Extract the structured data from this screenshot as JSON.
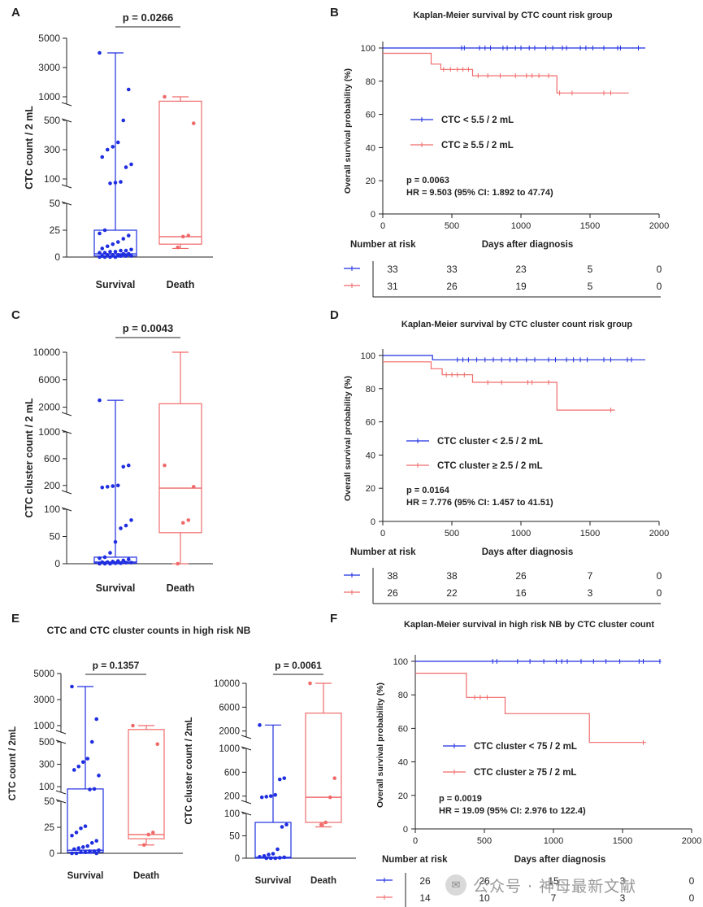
{
  "colors": {
    "survival": "#1f2ee0",
    "death": "#f06a6a",
    "axis": "#222222"
  },
  "chart_data": [
    {
      "panel": "A",
      "type": "box",
      "ylabel": "CTC count / 2 mL",
      "categories": [
        "Survival",
        "Death"
      ],
      "pvalue": "p = 0.0266",
      "yticks": [
        "0",
        "25",
        "50",
        "100",
        "300",
        "500",
        "1000",
        "3000",
        "5000"
      ],
      "series": [
        {
          "name": "Survival",
          "color": "#1f2ee0",
          "box": [
            1,
            3,
            25
          ],
          "whisker": [
            0,
            4000
          ],
          "points": [
            4000,
            1500,
            500,
            350,
            320,
            300,
            250,
            200,
            180,
            80,
            75,
            70,
            25,
            22,
            20,
            17,
            14,
            12,
            10,
            8,
            7,
            6,
            6,
            5,
            5,
            4,
            4,
            3,
            3,
            2,
            2,
            2,
            1,
            1,
            1,
            1,
            0,
            0,
            0,
            0
          ]
        },
        {
          "name": "Death",
          "color": "#f06a6a",
          "box": [
            12,
            19,
            700
          ],
          "whisker": [
            8,
            1000
          ],
          "points": [
            1000,
            480,
            20,
            19,
            9
          ]
        }
      ]
    },
    {
      "panel": "B",
      "type": "line",
      "title": "Kaplan-Meier survival by CTC count risk group",
      "xlabel": "Days after diagnosis",
      "ylabel": "Overall survival probability (%)",
      "xlim": [
        0,
        2000
      ],
      "ylim": [
        0,
        100
      ],
      "xticks": [
        "0",
        "500",
        "1000",
        "1500",
        "2000"
      ],
      "yticks": [
        "0",
        "20",
        "40",
        "60",
        "80",
        "100"
      ],
      "series": [
        {
          "name": "CTC < 5.5 / 2 mL",
          "color": "#1f2ee0",
          "steps": [
            [
              0,
              100
            ],
            [
              1900,
              100
            ]
          ],
          "censors": [
            570,
            590,
            700,
            740,
            780,
            870,
            900,
            960,
            1000,
            1060,
            1100,
            1180,
            1230,
            1300,
            1330,
            1430,
            1470,
            1520,
            1600,
            1700,
            1720,
            1850
          ]
        },
        {
          "name": "CTC ≥ 5.5 / 2 mL",
          "color": "#f06a6a",
          "steps": [
            [
              0,
              96.8
            ],
            [
              350,
              96.8
            ],
            [
              350,
              90.3
            ],
            [
              420,
              90.3
            ],
            [
              420,
              87.1
            ],
            [
              650,
              87.1
            ],
            [
              650,
              83.3
            ],
            [
              1260,
              83.3
            ],
            [
              1260,
              72.9
            ],
            [
              1780,
              72.9
            ]
          ],
          "censors": [
            440,
            490,
            540,
            580,
            620,
            690,
            760,
            850,
            960,
            1040,
            1080,
            1130,
            1200,
            1280,
            1370,
            1600,
            1650
          ]
        }
      ],
      "pvalue": "p = 0.0063",
      "hr": "HR = 9.503 (95% CI: 1.892 to 47.74)",
      "risk": {
        "header": "Number at risk",
        "times": [
          0,
          500,
          1000,
          1500,
          2000
        ],
        "rows": [
          {
            "color": "#1f2ee0",
            "counts": [
              "33",
              "33",
              "23",
              "5",
              "0"
            ]
          },
          {
            "color": "#f06a6a",
            "counts": [
              "31",
              "26",
              "19",
              "5",
              "0"
            ]
          }
        ]
      }
    },
    {
      "panel": "C",
      "type": "box",
      "ylabel": "CTC cluster count / 2 mL",
      "categories": [
        "Survival",
        "Death"
      ],
      "pvalue": "p = 0.0043",
      "yticks": [
        "0",
        "50",
        "100",
        "200",
        "600",
        "1000",
        "2000",
        "6000",
        "10000"
      ],
      "series": [
        {
          "name": "Survival",
          "color": "#1f2ee0",
          "box": [
            1,
            3,
            12
          ],
          "whisker": [
            0,
            3000
          ],
          "points": [
            3000,
            500,
            480,
            200,
            190,
            180,
            170,
            80,
            70,
            65,
            40,
            20,
            12,
            10,
            8,
            6,
            5,
            4,
            3,
            3,
            2,
            2,
            1,
            1,
            0,
            0,
            0
          ]
        },
        {
          "name": "Death",
          "color": "#f06a6a",
          "box": [
            57,
            160,
            2500
          ],
          "whisker": [
            0,
            10000
          ],
          "points": [
            500,
            180,
            80,
            75,
            0
          ]
        }
      ]
    },
    {
      "panel": "D",
      "type": "line",
      "title": "Kaplan-Meier survival by CTC cluster count risk group",
      "xlabel": "Days after diagnosis",
      "ylabel": "Overall survival probability (%)",
      "xlim": [
        0,
        2000
      ],
      "ylim": [
        0,
        100
      ],
      "xticks": [
        "0",
        "500",
        "1000",
        "1500",
        "2000"
      ],
      "yticks": [
        "0",
        "20",
        "40",
        "60",
        "80",
        "100"
      ],
      "series": [
        {
          "name": "CTC cluster < 2.5 / 2 mL",
          "color": "#1f2ee0",
          "steps": [
            [
              0,
              100
            ],
            [
              360,
              100
            ],
            [
              360,
              97.4
            ],
            [
              1900,
              97.4
            ]
          ],
          "censors": [
            540,
            580,
            620,
            680,
            740,
            800,
            860,
            920,
            970,
            1040,
            1100,
            1200,
            1250,
            1330,
            1380,
            1430,
            1480,
            1600,
            1650,
            1770,
            1800
          ]
        },
        {
          "name": "CTC cluster ≥ 2.5 / 2 mL",
          "color": "#f06a6a",
          "steps": [
            [
              0,
              96.2
            ],
            [
              350,
              96.2
            ],
            [
              350,
              92
            ],
            [
              430,
              92
            ],
            [
              430,
              88.4
            ],
            [
              650,
              88.4
            ],
            [
              650,
              83.8
            ],
            [
              1260,
              83.8
            ],
            [
              1260,
              67.1
            ],
            [
              1680,
              67.1
            ]
          ],
          "censors": [
            460,
            500,
            540,
            590,
            760,
            860,
            1050,
            1080,
            1200,
            1650
          ]
        }
      ],
      "pvalue": "p = 0.0164",
      "hr": "HR = 7.776 (95% CI: 1.457 to 41.51)",
      "risk": {
        "header": "Number at risk",
        "times": [
          0,
          500,
          1000,
          1500,
          2000
        ],
        "rows": [
          {
            "color": "#1f2ee0",
            "counts": [
              "38",
              "38",
              "26",
              "7",
              "0"
            ]
          },
          {
            "color": "#f06a6a",
            "counts": [
              "26",
              "22",
              "16",
              "3",
              "0"
            ]
          }
        ]
      }
    },
    {
      "panel": "E",
      "type": "box",
      "title": "CTC and CTC cluster counts in high risk NB",
      "ylabel": "CTC count / 2mL",
      "categories": [
        "Survival",
        "Death"
      ],
      "pvalue": "p = 0.1357",
      "yticks": [
        "0",
        "25",
        "50",
        "100",
        "300",
        "500",
        "1000",
        "3000",
        "5000"
      ],
      "series": [
        {
          "name": "Survival",
          "color": "#1f2ee0",
          "box": [
            1,
            3,
            80
          ],
          "whisker": [
            0,
            4000
          ],
          "points": [
            4000,
            1500,
            500,
            350,
            320,
            280,
            250,
            200,
            80,
            75,
            26,
            24,
            20,
            17,
            12,
            10,
            7,
            6,
            5,
            4,
            3,
            2,
            2,
            1,
            1,
            0,
            0,
            0
          ]
        },
        {
          "name": "Death",
          "color": "#f06a6a",
          "box": [
            14,
            18,
            700
          ],
          "whisker": [
            8,
            1000
          ],
          "points": [
            1000,
            480,
            20,
            18,
            8
          ]
        }
      ]
    },
    {
      "panel": "E2",
      "type": "box",
      "ylabel": "CTC cluster count / 2mL",
      "categories": [
        "Survival",
        "Death"
      ],
      "pvalue": "p = 0.0061",
      "yticks": [
        "0",
        "50",
        "100",
        "200",
        "600",
        "1000",
        "2000",
        "6000",
        "10000"
      ],
      "series": [
        {
          "name": "Survival",
          "color": "#1f2ee0",
          "box": [
            0,
            2,
            80
          ],
          "whisker": [
            0,
            3000
          ],
          "points": [
            3000,
            500,
            480,
            220,
            200,
            190,
            180,
            75,
            70,
            20,
            10,
            8,
            5,
            3,
            2,
            1,
            0,
            0,
            0
          ]
        },
        {
          "name": "Death",
          "color": "#f06a6a",
          "box": [
            80,
            180,
            5000
          ],
          "whisker": [
            70,
            10000
          ],
          "points": [
            10000,
            500,
            180,
            80,
            75
          ]
        }
      ]
    },
    {
      "panel": "F",
      "type": "line",
      "title": "Kaplan-Meier survival in high risk NB by CTC cluster count",
      "xlabel": "Days after diagnosis",
      "ylabel": "Overall survival probability (%)",
      "xlim": [
        0,
        2000
      ],
      "ylim": [
        0,
        100
      ],
      "xticks": [
        "0",
        "500",
        "1000",
        "1500",
        "2000"
      ],
      "yticks": [
        "0",
        "20",
        "40",
        "60",
        "80",
        "100"
      ],
      "series": [
        {
          "name": "CTC cluster < 75 / 2 mL",
          "color": "#1f2ee0",
          "steps": [
            [
              0,
              100
            ],
            [
              1780,
              100
            ]
          ],
          "censors": [
            560,
            590,
            740,
            830,
            930,
            1020,
            1060,
            1100,
            1200,
            1290,
            1380,
            1480,
            1620,
            1650,
            1770
          ]
        },
        {
          "name": "CTC cluster ≥ 75 / 2 mL",
          "color": "#f06a6a",
          "steps": [
            [
              0,
              92.9
            ],
            [
              370,
              92.9
            ],
            [
              370,
              78.5
            ],
            [
              420,
              78.5
            ],
            [
              420,
              78.5
            ],
            [
              650,
              78.5
            ],
            [
              650,
              68.8
            ],
            [
              1260,
              68.8
            ],
            [
              1260,
              51.6
            ],
            [
              1670,
              51.6
            ]
          ],
          "censors": [
            430,
            470,
            520,
            1650
          ]
        }
      ],
      "pvalue": "p = 0.0019",
      "hr": "HR = 19.09 (95% CI: 2.976 to 122.4)",
      "risk": {
        "header": "Number at risk",
        "times": [
          0,
          500,
          1000,
          1500,
          2000
        ],
        "rows": [
          {
            "color": "#1f2ee0",
            "counts": [
              "26",
              "26",
              "15",
              "3",
              "0"
            ]
          },
          {
            "color": "#f06a6a",
            "counts": [
              "14",
              "10",
              "7",
              "3",
              "0"
            ]
          }
        ]
      }
    }
  ],
  "panel_letters": [
    "A",
    "B",
    "C",
    "D",
    "E",
    "F"
  ],
  "watermark": {
    "text": "公众号 · 神母最新文献"
  }
}
